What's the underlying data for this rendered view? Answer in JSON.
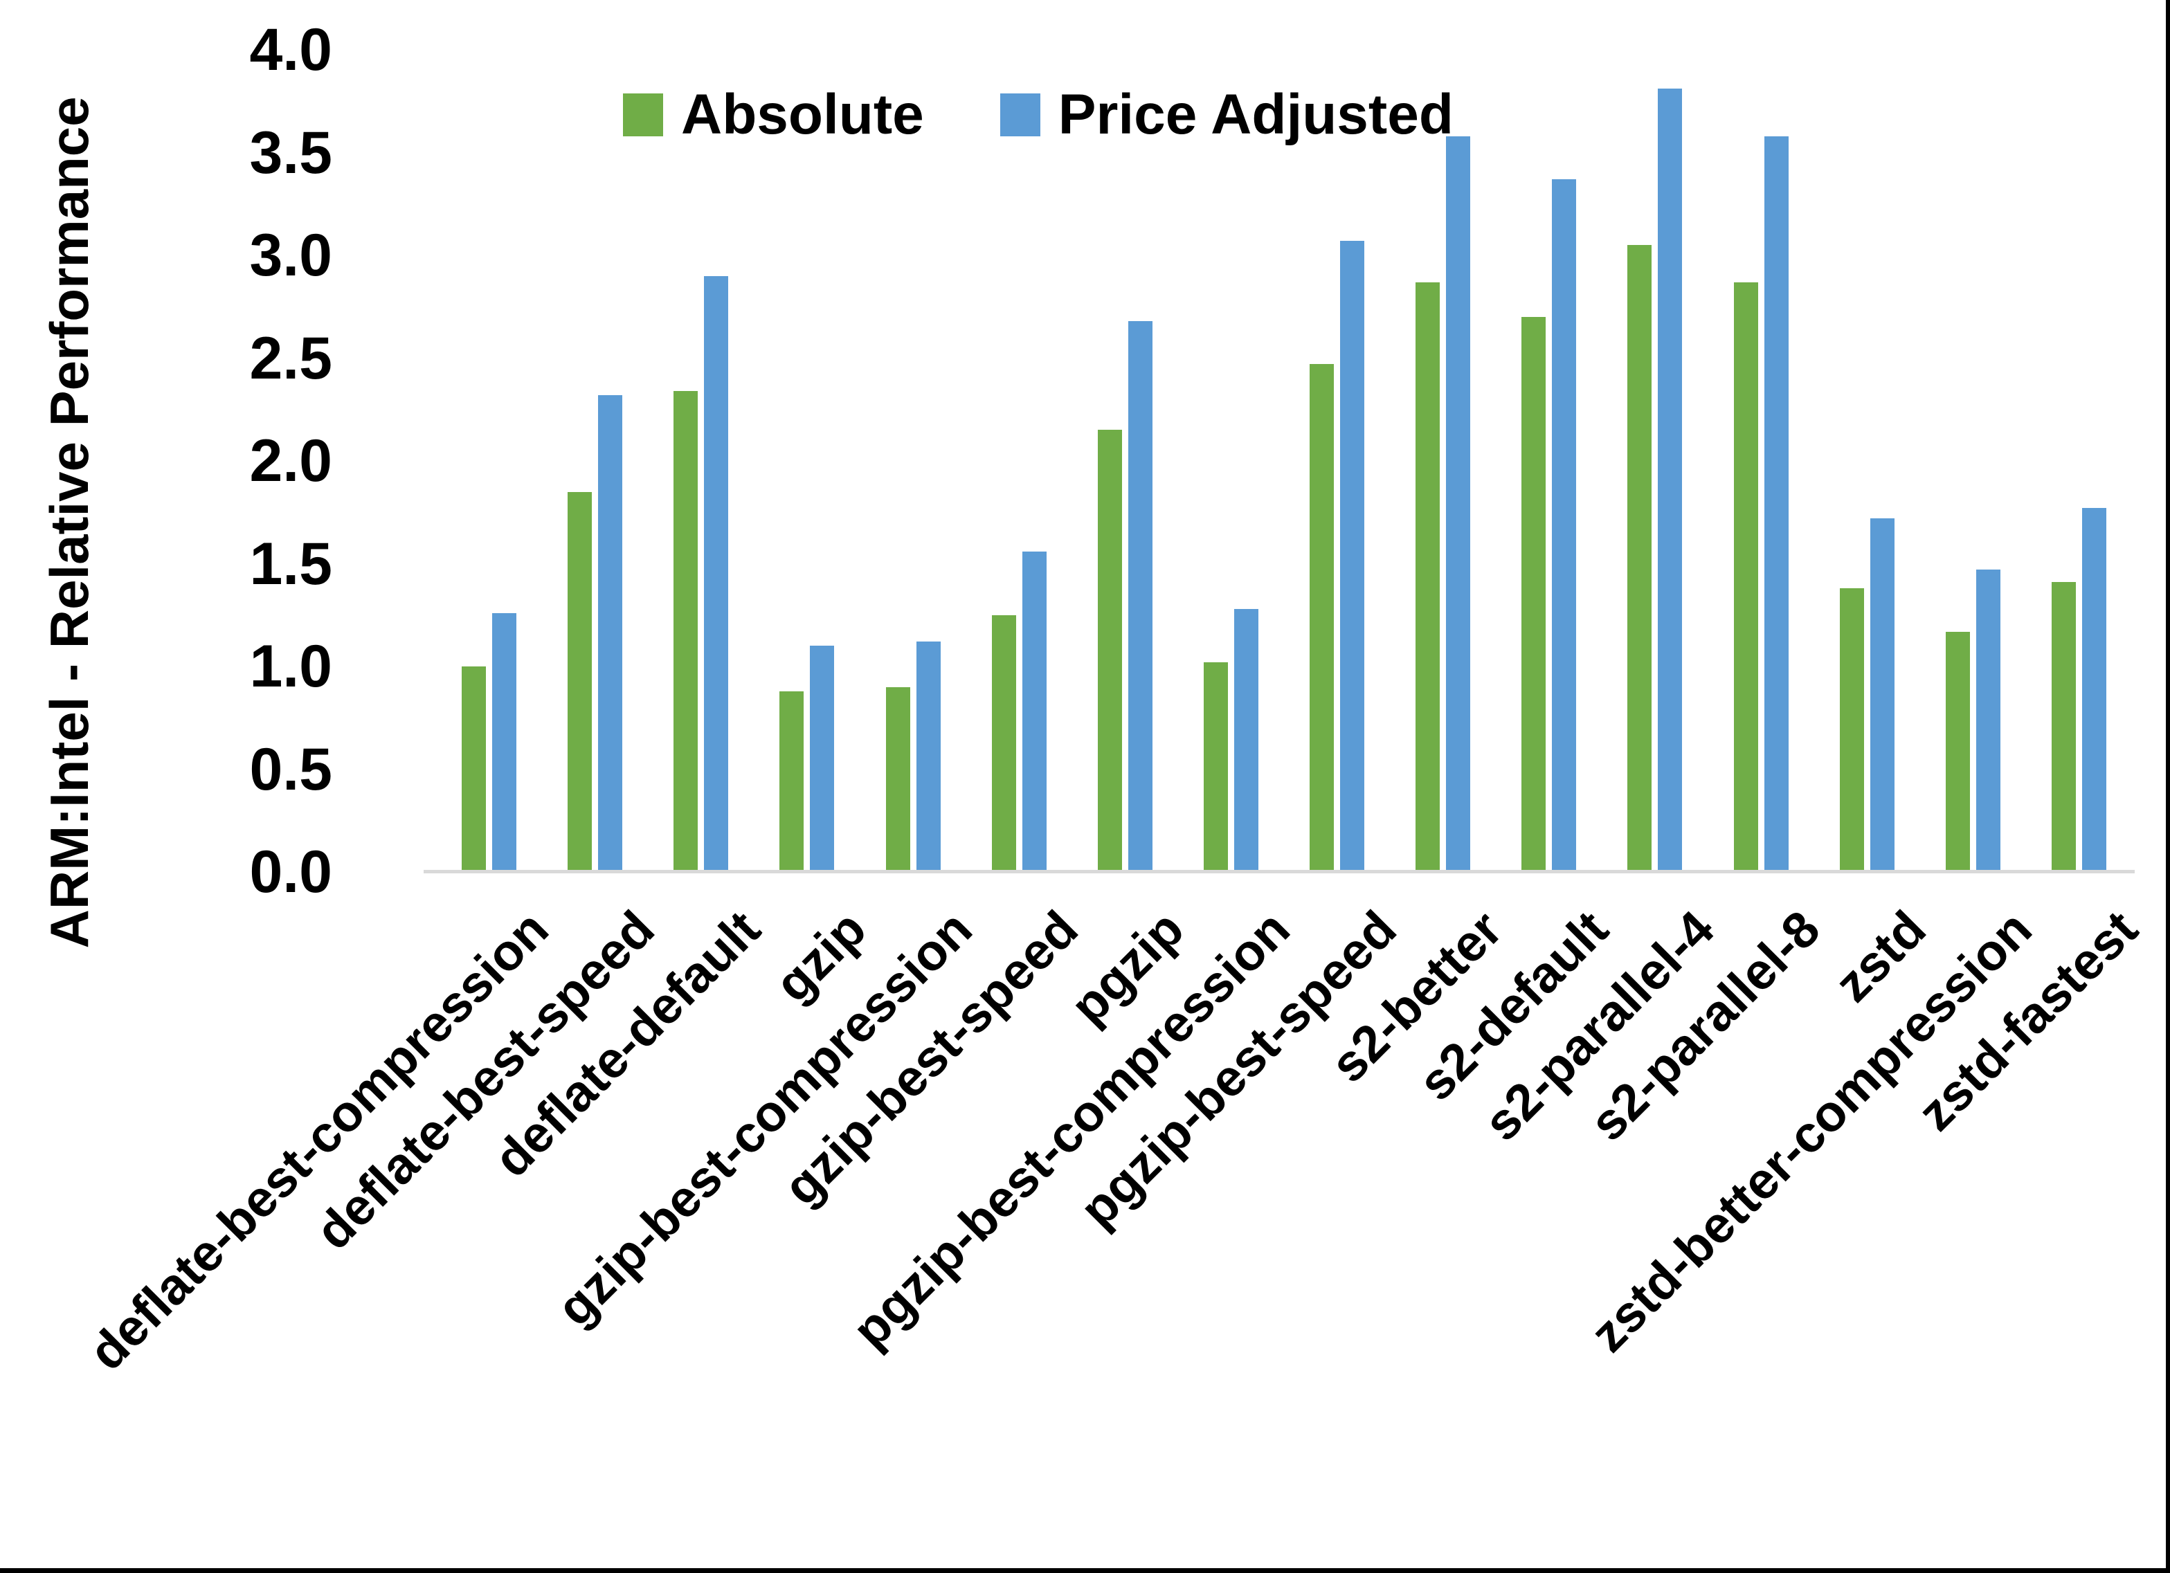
{
  "y_axis": {
    "title": "ARM:Intel - Relative Performance",
    "ticks": [
      "4.0",
      "3.5",
      "3.0",
      "2.5",
      "2.0",
      "1.5",
      "1.0",
      "0.5",
      "0.0"
    ],
    "min": 0.0,
    "max": 4.0
  },
  "legend": {
    "items": [
      {
        "label": "Absolute",
        "color": "#70AD47"
      },
      {
        "label": "Price Adjusted",
        "color": "#5B9BD5"
      }
    ],
    "position": "top-center"
  },
  "colors": {
    "axis_line": "#D9D9D9",
    "text": "#000000",
    "background": "#FFFFFF",
    "frame_border": "#000000"
  },
  "chart_data": {
    "type": "bar",
    "title": "",
    "xlabel": "",
    "ylabel": "ARM:Intel - Relative Performance",
    "ylim": [
      0.0,
      4.0
    ],
    "ytick_step": 0.5,
    "grid": false,
    "legend_position": "top-center",
    "categories": [
      "deflate-best-compression",
      "deflate-best-speed",
      "deflate-default",
      "gzip",
      "gzip-best-compression",
      "gzip-best-speed",
      "pgzip",
      "pgzip-best-compression",
      "pgzip-best-speed",
      "s2-better",
      "s2-default",
      "s2-parallel-4",
      "s2-parallel-8",
      "zstd",
      "zstd-better-compression",
      "zstd-fastest"
    ],
    "series": [
      {
        "name": "Absolute",
        "color": "#70AD47",
        "values": [
          1.0,
          1.85,
          2.34,
          0.88,
          0.9,
          1.25,
          2.15,
          1.02,
          2.47,
          2.87,
          2.7,
          3.05,
          2.87,
          1.38,
          1.17,
          1.41
        ]
      },
      {
        "name": "Price Adjusted",
        "color": "#5B9BD5",
        "values": [
          1.26,
          2.32,
          2.9,
          1.1,
          1.12,
          1.56,
          2.68,
          1.28,
          3.07,
          3.58,
          3.37,
          3.81,
          3.58,
          1.72,
          1.47,
          1.77
        ]
      }
    ]
  }
}
